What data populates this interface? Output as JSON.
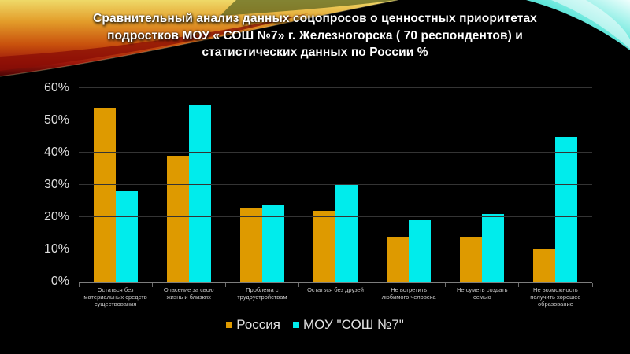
{
  "slide": {
    "title_lines": [
      "Сравнительный анализ данных соцопросов о ценностных приоритетах",
      "подростков  МОУ « СОШ №7» г. Железногорска  ( 70 респондентов) и",
      "статистических данных по России %"
    ]
  },
  "chart_data": {
    "type": "bar",
    "title": "Сравнительный анализ данных соцопросов о ценностных приоритетах подростков МОУ « СОШ №7» г. Железногорска ( 70 респондентов) и статистических данных по России %",
    "categories": [
      "Остаться без материальных средств существования",
      "Опасение за свою жизнь и близких",
      "Проблема с трудоустройствам",
      "Остаться без друзей",
      "Не встретить любимого человека",
      "Не суметь создать семью",
      "Не возможность получить хорошее образование"
    ],
    "series": [
      {
        "name": "Россия",
        "color": "#DE9A00",
        "values": [
          54,
          39,
          23,
          22,
          14,
          14,
          10
        ]
      },
      {
        "name": "МОУ \"СОШ №7\"",
        "color": "#00ECEC",
        "values": [
          28,
          55,
          24,
          30,
          19,
          21,
          45
        ]
      }
    ],
    "xlabel": "",
    "ylabel": "",
    "ylim": [
      0,
      60
    ],
    "ytick_step": 10,
    "ytick_labels": [
      "0%",
      "10%",
      "20%",
      "30%",
      "40%",
      "50%",
      "60%"
    ],
    "grid": true,
    "legend_position": "bottom",
    "colors": {
      "background": "#000000",
      "gridline": "#343434",
      "axis_line": "#7d7d7d",
      "tick_label": "#dcdcdc",
      "category_label": "#c9c9c9",
      "legend_text": "#e2e2e2",
      "title_text": "#ffffff"
    }
  }
}
